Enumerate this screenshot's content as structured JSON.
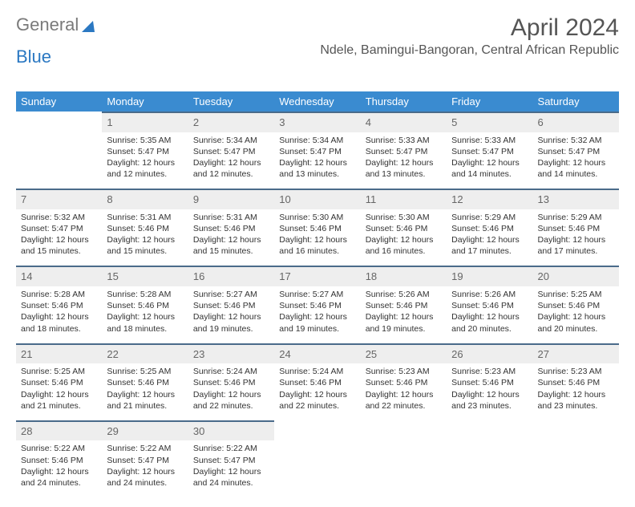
{
  "brand": {
    "word1": "General",
    "word2": "Blue"
  },
  "title": "April 2024",
  "location": "Ndele, Bamingui-Bangoran, Central African Republic",
  "style": {
    "header_bg": "#3a8bd0",
    "header_text": "#ffffff",
    "daynum_bg": "#eeeeee",
    "daynum_border": "#4a6b8a",
    "brand_gray": "#7a7a7a",
    "brand_blue": "#2b78c2",
    "body_bg": "#ffffff",
    "text_color": "#333333",
    "title_fontsize": 30,
    "header_fontsize": 13,
    "cell_fontsize": 10.5
  },
  "weekdays": [
    "Sunday",
    "Monday",
    "Tuesday",
    "Wednesday",
    "Thursday",
    "Friday",
    "Saturday"
  ],
  "weeks": [
    [
      null,
      {
        "n": "1",
        "sr": "5:35 AM",
        "ss": "5:47 PM",
        "dl": "12 hours and 12 minutes."
      },
      {
        "n": "2",
        "sr": "5:34 AM",
        "ss": "5:47 PM",
        "dl": "12 hours and 12 minutes."
      },
      {
        "n": "3",
        "sr": "5:34 AM",
        "ss": "5:47 PM",
        "dl": "12 hours and 13 minutes."
      },
      {
        "n": "4",
        "sr": "5:33 AM",
        "ss": "5:47 PM",
        "dl": "12 hours and 13 minutes."
      },
      {
        "n": "5",
        "sr": "5:33 AM",
        "ss": "5:47 PM",
        "dl": "12 hours and 14 minutes."
      },
      {
        "n": "6",
        "sr": "5:32 AM",
        "ss": "5:47 PM",
        "dl": "12 hours and 14 minutes."
      }
    ],
    [
      {
        "n": "7",
        "sr": "5:32 AM",
        "ss": "5:47 PM",
        "dl": "12 hours and 15 minutes."
      },
      {
        "n": "8",
        "sr": "5:31 AM",
        "ss": "5:46 PM",
        "dl": "12 hours and 15 minutes."
      },
      {
        "n": "9",
        "sr": "5:31 AM",
        "ss": "5:46 PM",
        "dl": "12 hours and 15 minutes."
      },
      {
        "n": "10",
        "sr": "5:30 AM",
        "ss": "5:46 PM",
        "dl": "12 hours and 16 minutes."
      },
      {
        "n": "11",
        "sr": "5:30 AM",
        "ss": "5:46 PM",
        "dl": "12 hours and 16 minutes."
      },
      {
        "n": "12",
        "sr": "5:29 AM",
        "ss": "5:46 PM",
        "dl": "12 hours and 17 minutes."
      },
      {
        "n": "13",
        "sr": "5:29 AM",
        "ss": "5:46 PM",
        "dl": "12 hours and 17 minutes."
      }
    ],
    [
      {
        "n": "14",
        "sr": "5:28 AM",
        "ss": "5:46 PM",
        "dl": "12 hours and 18 minutes."
      },
      {
        "n": "15",
        "sr": "5:28 AM",
        "ss": "5:46 PM",
        "dl": "12 hours and 18 minutes."
      },
      {
        "n": "16",
        "sr": "5:27 AM",
        "ss": "5:46 PM",
        "dl": "12 hours and 19 minutes."
      },
      {
        "n": "17",
        "sr": "5:27 AM",
        "ss": "5:46 PM",
        "dl": "12 hours and 19 minutes."
      },
      {
        "n": "18",
        "sr": "5:26 AM",
        "ss": "5:46 PM",
        "dl": "12 hours and 19 minutes."
      },
      {
        "n": "19",
        "sr": "5:26 AM",
        "ss": "5:46 PM",
        "dl": "12 hours and 20 minutes."
      },
      {
        "n": "20",
        "sr": "5:25 AM",
        "ss": "5:46 PM",
        "dl": "12 hours and 20 minutes."
      }
    ],
    [
      {
        "n": "21",
        "sr": "5:25 AM",
        "ss": "5:46 PM",
        "dl": "12 hours and 21 minutes."
      },
      {
        "n": "22",
        "sr": "5:25 AM",
        "ss": "5:46 PM",
        "dl": "12 hours and 21 minutes."
      },
      {
        "n": "23",
        "sr": "5:24 AM",
        "ss": "5:46 PM",
        "dl": "12 hours and 22 minutes."
      },
      {
        "n": "24",
        "sr": "5:24 AM",
        "ss": "5:46 PM",
        "dl": "12 hours and 22 minutes."
      },
      {
        "n": "25",
        "sr": "5:23 AM",
        "ss": "5:46 PM",
        "dl": "12 hours and 22 minutes."
      },
      {
        "n": "26",
        "sr": "5:23 AM",
        "ss": "5:46 PM",
        "dl": "12 hours and 23 minutes."
      },
      {
        "n": "27",
        "sr": "5:23 AM",
        "ss": "5:46 PM",
        "dl": "12 hours and 23 minutes."
      }
    ],
    [
      {
        "n": "28",
        "sr": "5:22 AM",
        "ss": "5:46 PM",
        "dl": "12 hours and 24 minutes."
      },
      {
        "n": "29",
        "sr": "5:22 AM",
        "ss": "5:47 PM",
        "dl": "12 hours and 24 minutes."
      },
      {
        "n": "30",
        "sr": "5:22 AM",
        "ss": "5:47 PM",
        "dl": "12 hours and 24 minutes."
      },
      null,
      null,
      null,
      null
    ]
  ],
  "labels": {
    "sunrise": "Sunrise:",
    "sunset": "Sunset:",
    "daylight": "Daylight:"
  }
}
